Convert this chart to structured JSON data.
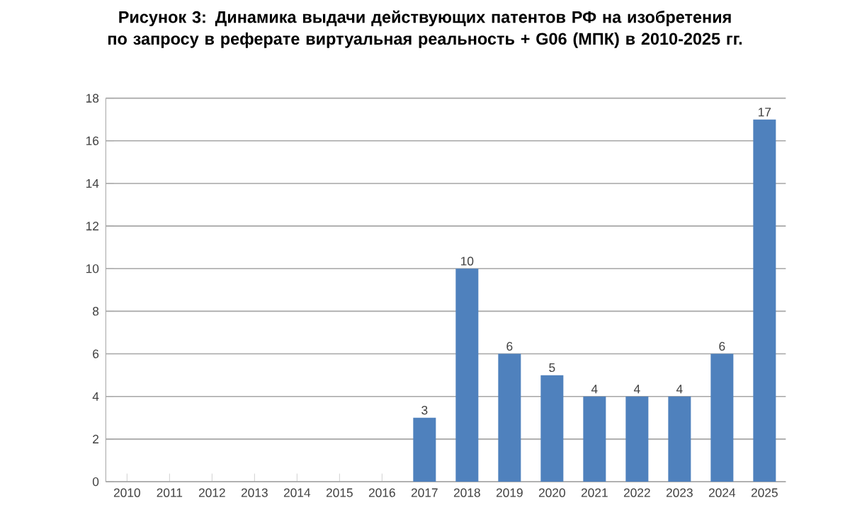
{
  "chart_data": {
    "type": "bar",
    "title": "Рисунок 3: Динамика выдачи действующих патентов РФ на изобретения по запросу в реферате виртуальная реальность + G06 (МПК) в 2010-2025 гг.",
    "categories": [
      "2010",
      "2011",
      "2012",
      "2013",
      "2014",
      "2015",
      "2016",
      "2017",
      "2018",
      "2019",
      "2020",
      "2021",
      "2022",
      "2023",
      "2024",
      "2025"
    ],
    "values": [
      0,
      0,
      0,
      0,
      0,
      0,
      0,
      3,
      10,
      6,
      5,
      4,
      4,
      4,
      6,
      17
    ],
    "value_labels": [
      null,
      null,
      null,
      null,
      null,
      null,
      null,
      "3",
      "10",
      "6",
      "5",
      "4",
      "4",
      "4",
      "6",
      "17"
    ],
    "color": "#4f81bd",
    "ylim": [
      0,
      18
    ],
    "yticks": [
      0,
      2,
      4,
      6,
      8,
      10,
      12,
      14,
      16,
      18
    ],
    "grid": "y"
  }
}
